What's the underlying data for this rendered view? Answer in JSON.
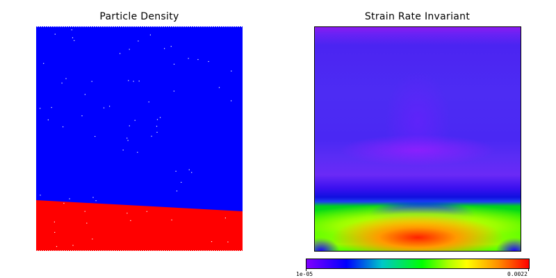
{
  "panels": {
    "left": {
      "title": "Particle Density"
    },
    "right": {
      "title": "Strain Rate Invariant"
    }
  },
  "colorbar": {
    "min_label": "1e-05",
    "max_label": "0.0022"
  },
  "colors": {
    "upper_material": "#0000ff",
    "lower_material": "#ff0000"
  }
}
